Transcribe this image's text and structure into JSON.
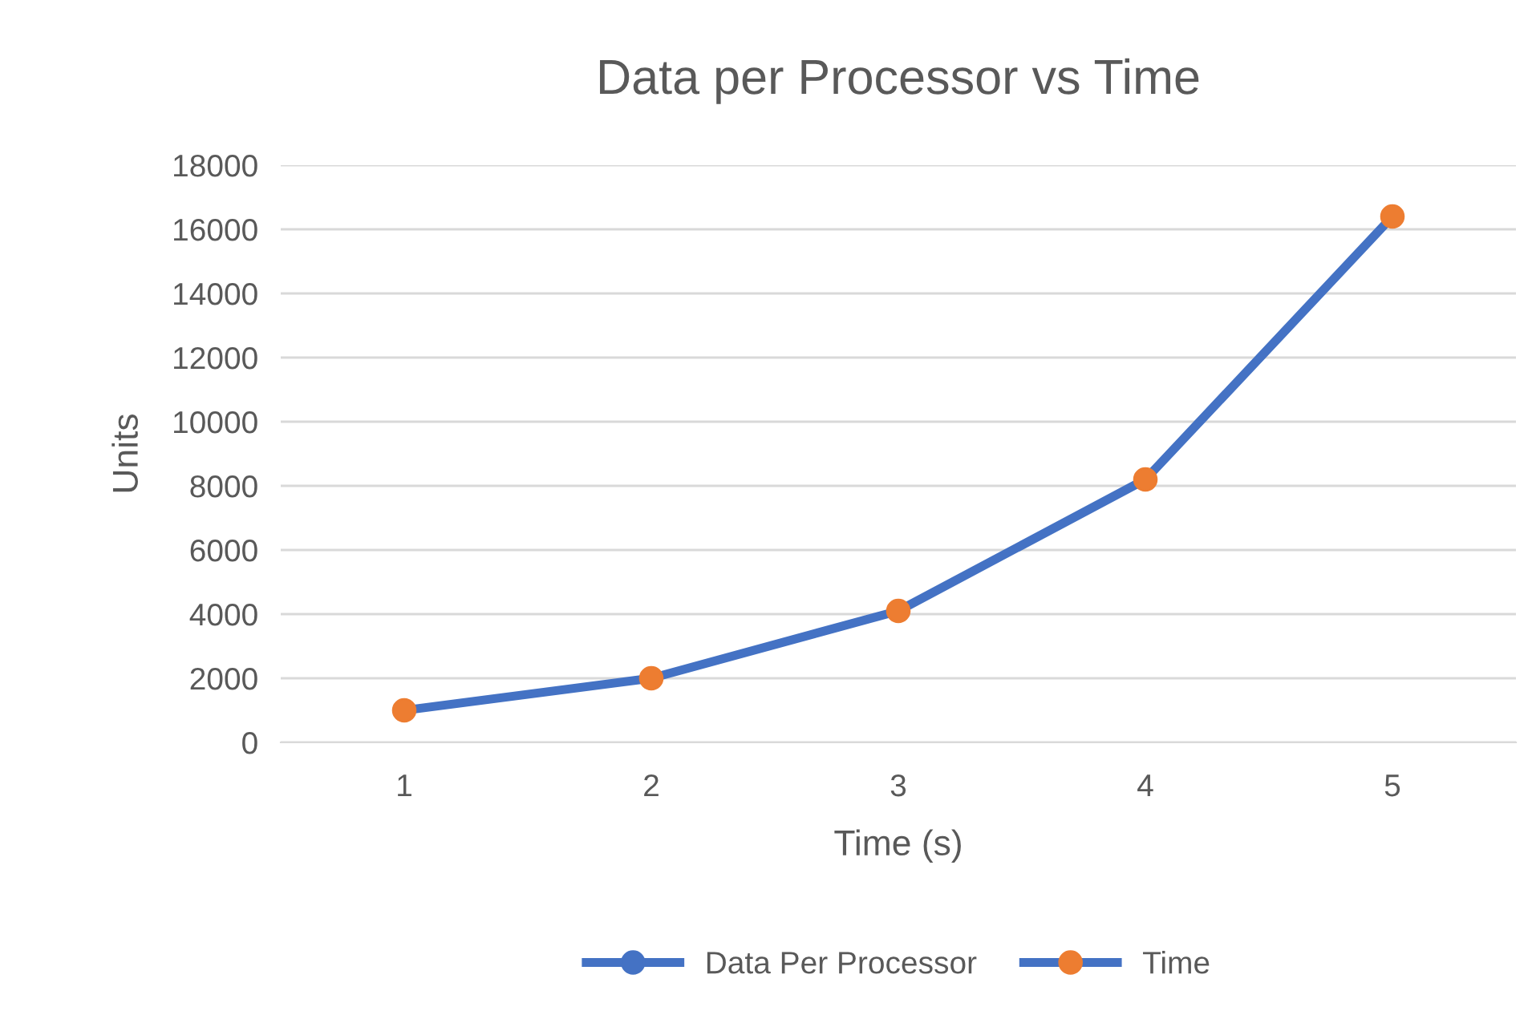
{
  "chart_data": {
    "type": "line",
    "title": "Data per Processor vs Time",
    "xlabel": "Time (s)",
    "ylabel": "Units",
    "categories": [
      "1",
      "2",
      "3",
      "4",
      "5"
    ],
    "series": [
      {
        "name": "Data Per Processor",
        "color": "#4472c4",
        "values": [
          null,
          null,
          null,
          null,
          null
        ]
      },
      {
        "name": "Time",
        "color": "#4472c4",
        "colors": [
          "#ed7d31",
          "#ed7d31",
          "#ed7d31",
          "#ed7d31",
          "#ed7d31"
        ],
        "values": [
          1000,
          2000,
          4100,
          8200,
          16400
        ]
      }
    ],
    "ylim": [
      0,
      18000
    ],
    "yticks": [
      0,
      2000,
      4000,
      6000,
      8000,
      10000,
      12000,
      14000,
      16000,
      18000
    ],
    "grid": "y",
    "legend": "bottom",
    "marker": "circle",
    "line_style": "solid"
  }
}
